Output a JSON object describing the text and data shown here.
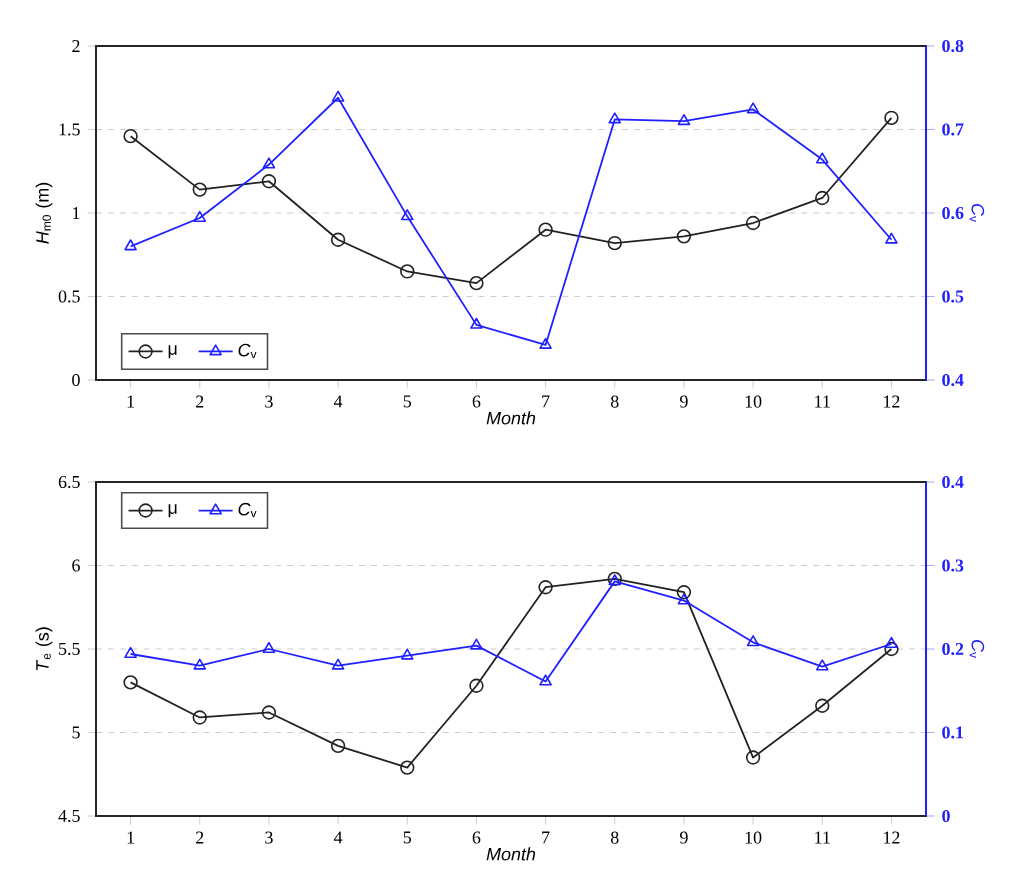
{
  "chart_data": [
    {
      "type": "line",
      "xlabel": "Month",
      "ylabel": "*H*$_{m0}$ (m)",
      "y2label": "*C*$_{v}$",
      "x": [
        1,
        2,
        3,
        4,
        5,
        6,
        7,
        8,
        9,
        10,
        11,
        12
      ],
      "xlim": [
        0.5,
        12.5
      ],
      "xticks": [
        1,
        2,
        3,
        4,
        5,
        6,
        7,
        8,
        9,
        10,
        11,
        12
      ],
      "ylim": [
        0,
        2
      ],
      "yticks": [
        0,
        0.5,
        1,
        1.5,
        2
      ],
      "y2lim": [
        0.4,
        0.8
      ],
      "y2ticks": [
        0.4,
        0.5,
        0.6,
        0.7,
        0.8
      ],
      "grid": "y",
      "legend": "bottom left",
      "line_style": "solid",
      "series": [
        {
          "name": "μ",
          "color": "#222222",
          "marker": "circle",
          "values": [
            1.46,
            1.14,
            1.19,
            0.84,
            0.65,
            0.58,
            0.9,
            0.82,
            0.86,
            0.94,
            1.09,
            1.57
          ]
        },
        {
          "name": "*C*$_{v}$",
          "color": "#2020ff",
          "marker": "triangle",
          "axis": "y2",
          "values": [
            0.56,
            0.594,
            0.658,
            0.738,
            0.596,
            0.466,
            0.442,
            0.712,
            0.71,
            0.724,
            0.664,
            0.568
          ]
        }
      ]
    },
    {
      "type": "line",
      "xlabel": "Month",
      "ylabel": "*T*$_{e}$ (s)",
      "y2label": "*C*$_{v}$",
      "x": [
        1,
        2,
        3,
        4,
        5,
        6,
        7,
        8,
        9,
        10,
        11,
        12
      ],
      "xlim": [
        0.5,
        12.5
      ],
      "xticks": [
        1,
        2,
        3,
        4,
        5,
        6,
        7,
        8,
        9,
        10,
        11,
        12
      ],
      "ylim": [
        4.5,
        6.5
      ],
      "yticks": [
        4.5,
        5,
        5.5,
        6,
        6.5
      ],
      "y2lim": [
        0,
        0.4
      ],
      "y2ticks": [
        0,
        0.1,
        0.2,
        0.3,
        0.4
      ],
      "grid": "y",
      "legend": "top left",
      "line_style": "solid",
      "series": [
        {
          "name": "μ",
          "color": "#222222",
          "marker": "circle",
          "values": [
            5.3,
            5.09,
            5.12,
            4.92,
            4.79,
            5.28,
            5.87,
            5.92,
            5.84,
            4.85,
            5.16,
            5.5
          ]
        },
        {
          "name": "*C*$_{v}$",
          "color": "#2020ff",
          "marker": "triangle",
          "axis": "y2",
          "values": [
            0.194,
            0.18,
            0.2,
            0.18,
            0.192,
            0.204,
            0.161,
            0.281,
            0.258,
            0.208,
            0.179,
            0.206
          ]
        }
      ]
    }
  ]
}
